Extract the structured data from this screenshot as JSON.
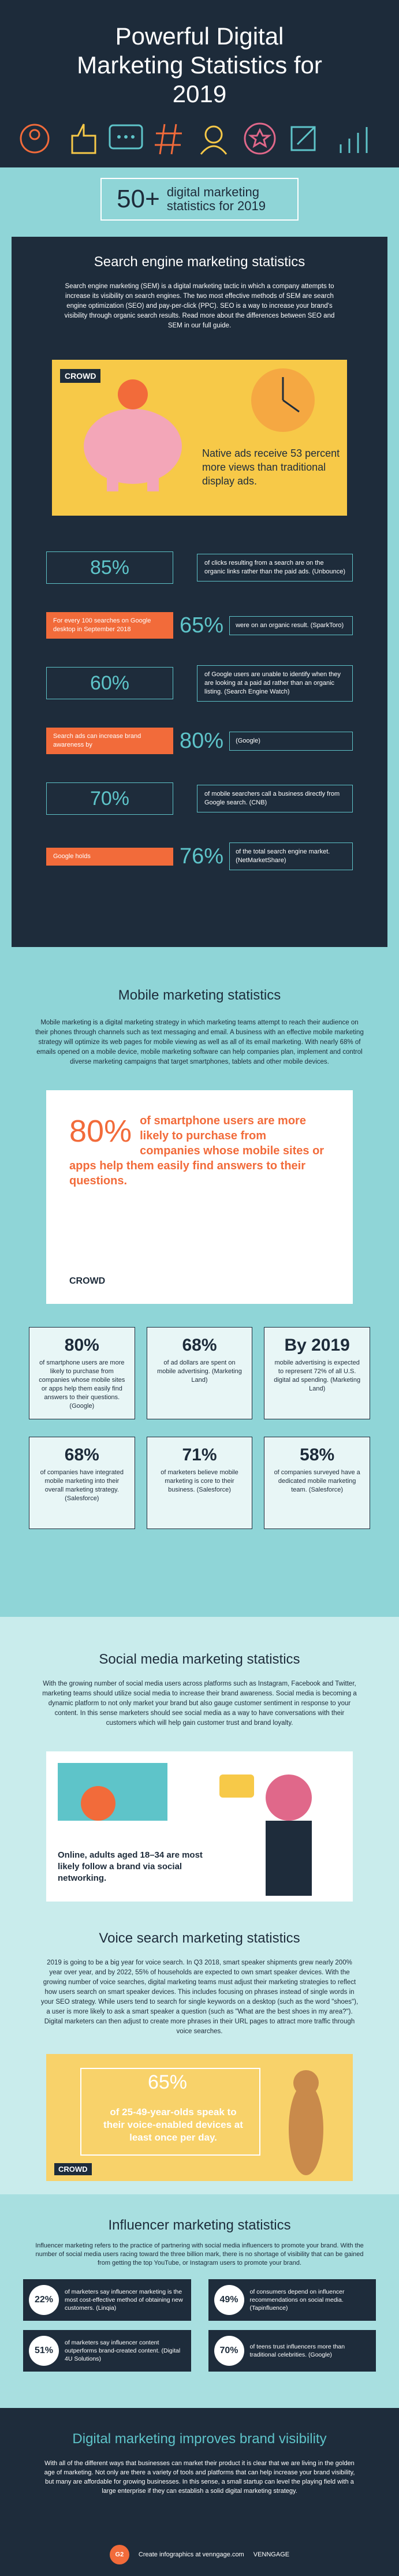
{
  "header": {
    "title": "Powerful Digital Marketing Statistics for 2019"
  },
  "banner": {
    "number": "50+",
    "text": "digital marketing statistics for 2019"
  },
  "search": {
    "title": "Search engine marketing statistics",
    "intro": "Search engine marketing (SEM) is a digital marketing tactic in which a company attempts to increase its visibility on search engines. The two most effective methods of SEM are search engine optimization (SEO) and pay-per-click (PPC). SEO is a way to increase your brand's visibility through organic search results. Read more about the differences between SEO and SEM in our full guide.",
    "feature": {
      "brand": "CROWD",
      "text": "Native ads receive 53 percent more views than traditional display ads."
    },
    "stats": [
      {
        "number": "85%",
        "text": "of clicks resulting from a search are on the organic links rather than the paid ads. (Unbounce)"
      },
      {
        "label": "For every 100 searches on Google desktop in September 2018",
        "number": "65%",
        "text": "were on an organic result. (SparkToro)"
      },
      {
        "number": "60%",
        "text": "of Google users are unable to identify when they are looking at a paid ad rather than an organic listing. (Search Engine Watch)"
      },
      {
        "label": "Search ads can increase brand awareness by",
        "number": "80%",
        "text": "(Google)"
      },
      {
        "number": "70%",
        "text": "of mobile searchers call a business directly from Google search. (CNB)"
      },
      {
        "label": "Google holds",
        "number": "76%",
        "text": "of the total search engine market. (NetMarketShare)"
      }
    ]
  },
  "mobile": {
    "title": "Mobile marketing statistics",
    "intro": "Mobile marketing is a digital marketing strategy in which marketing teams attempt to reach their audience on their phones through channels such as text messaging and email. A business with an effective mobile marketing strategy will optimize its web pages for mobile viewing as well as all of its email marketing. With nearly 68% of emails opened on a mobile device, mobile marketing software can help companies plan, implement and control diverse marketing campaigns that target smartphones, tablets and other mobile devices.",
    "feature": {
      "number": "80%",
      "text": "of smartphone users are more likely to purchase from companies whose mobile sites or apps help them easily find answers to their questions.",
      "brand": "CROWD"
    },
    "stats": [
      {
        "number": "80%",
        "text": "of smartphone users are more likely to purchase from companies whose mobile sites or apps help them easily find answers to their questions. (Google)"
      },
      {
        "number": "68%",
        "text": "of ad dollars are spent on mobile advertising. (Marketing Land)"
      },
      {
        "number": "By 2019",
        "text": "mobile advertising is expected to represent 72% of all U.S. digital ad spending. (Marketing Land)"
      },
      {
        "number": "68%",
        "text": "of companies have integrated mobile marketing into their overall marketing strategy. (Salesforce)"
      },
      {
        "number": "71%",
        "text": "of marketers believe mobile marketing is core to their business. (Salesforce)"
      },
      {
        "number": "58%",
        "text": "of companies surveyed have a dedicated mobile marketing team. (Salesforce)"
      }
    ]
  },
  "social": {
    "title": "Social media marketing statistics",
    "intro": "With the growing number of social media users across platforms such as Instagram, Facebook and Twitter, marketing teams should utilize social media to increase their brand awareness. Social media is becoming a dynamic platform to not only market your brand but also gauge customer sentiment in response to your content. In this sense marketers should see social media as a way to have conversations with their customers which will help gain customer trust and brand loyalty.",
    "feature": {
      "text": "Online, adults aged 18–34 are most likely follow a brand via social networking."
    }
  },
  "voice": {
    "title": "Voice search marketing statistics",
    "intro": "2019 is going to be a big year for voice search. In Q3 2018, smart speaker shipments grew nearly 200% year over year, and by 2022, 55% of households are expected to own smart speaker devices. With the growing number of voice searches, digital marketing teams must adjust their marketing strategies to reflect how users search on smart speaker devices. This includes focusing on phrases instead of single words in your SEO strategy. While users tend to search for single keywords on a desktop (such as the word \"shoes\"), a user is more likely to ask a smart speaker a question (such as \"What are the best shoes in my area?\"). Digital marketers can then adjust to create more phrases in their URL pages to attract more traffic through voice searches.",
    "feature": {
      "number": "65%",
      "text": "of 25-49-year-olds speak to their voice-enabled devices at least once per day.",
      "brand": "CROWD"
    }
  },
  "influencer": {
    "title": "Influencer marketing statistics",
    "intro": "Influencer marketing refers to the practice of partnering with social media influencers to promote your brand. With the number of social media users racing toward the three billion mark, there is no shortage of visibility that can be gained from getting the top YouTube, or Instagram users to promote your brand.",
    "stats": [
      {
        "number": "22%",
        "text": "of marketers say influencer marketing is the most cost-effective method of obtaining new customers. (Linqia)"
      },
      {
        "number": "49%",
        "text": "of consumers depend on influencer recommendations on social media. (Tapinfluence)"
      },
      {
        "number": "51%",
        "text": "of marketers say influencer content outperforms brand-created content. (Digital 4U Solutions)"
      },
      {
        "number": "70%",
        "text": "of teens trust influencers more than traditional celebrities. (Google)"
      }
    ]
  },
  "closing": {
    "title": "Digital marketing improves brand visibility",
    "text": "With all of the different ways that businesses can market their product it is clear that we are living in the golden age of marketing. Not only are there a variety of tools and platforms that can help increase your brand visibility, but many are affordable for growing businesses. In this sense, a small startup can level the playing field with a large enterprise if they can establish a solid digital marketing strategy."
  },
  "footer": {
    "logo": "G2",
    "credit": "Create infographics at venngage.com",
    "brand": "VENNGAGE"
  }
}
